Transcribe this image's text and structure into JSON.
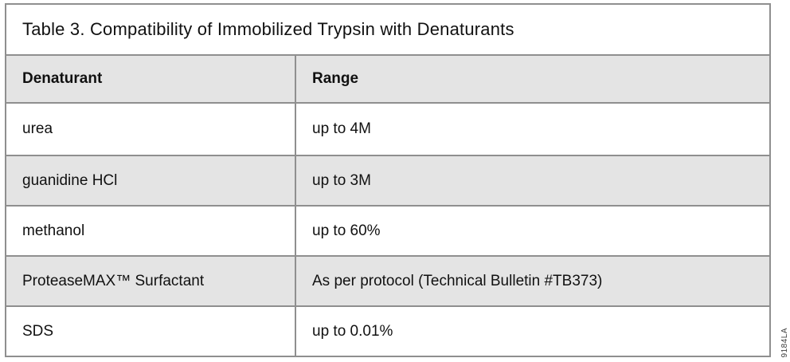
{
  "table": {
    "title": "Table 3. Compatibility of Immobilized Trypsin with Denaturants",
    "columns": [
      "Denaturant",
      "Range"
    ],
    "rows": [
      {
        "denaturant": "urea",
        "range": "up to 4M"
      },
      {
        "denaturant": "guanidine HCl",
        "range": "up to 3M"
      },
      {
        "denaturant": "methanol",
        "range": "up to 60%"
      },
      {
        "denaturant": "ProteaseMAX™ Surfactant",
        "range": "As per protocol (Technical Bulletin #TB373)"
      },
      {
        "denaturant": "SDS",
        "range": "up to 0.01%"
      }
    ]
  },
  "artwork_id": "9184LA",
  "colors": {
    "background": "#ffffff",
    "row_shaded_fill": "#e4e4e4",
    "border": "#8f8f8f",
    "text": "#111111"
  }
}
